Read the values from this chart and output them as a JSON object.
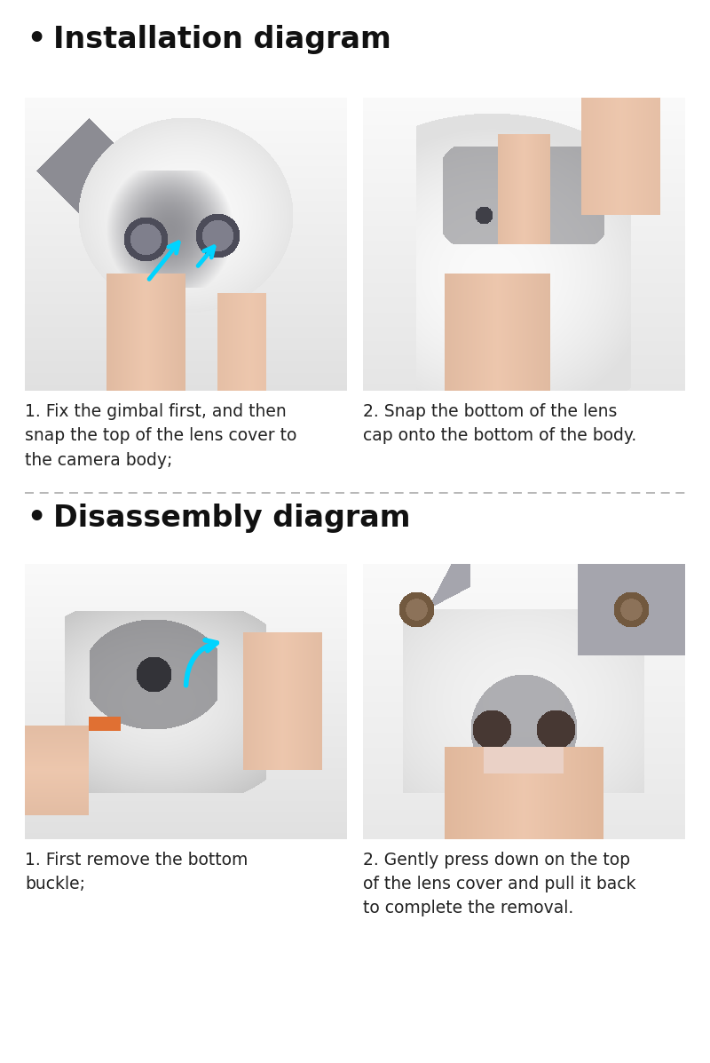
{
  "background_color": "#ffffff",
  "title1": "Installation diagram",
  "title2": "Disassembly diagram",
  "bullet": "•",
  "install_caption1": "1. Fix the gimbal first, and then\nsnap the top of the lens cover to\nthe camera body;",
  "install_caption2": "2. Snap the bottom of the lens\ncap onto the bottom of the body.",
  "disassembly_caption1": "1. First remove the bottom\nbuckle;",
  "disassembly_caption2": "2. Gently press down on the top\nof the lens cover and pull it back\nto complete the removal.",
  "divider_color": "#aaaaaa",
  "title_fontsize": 24,
  "caption_fontsize": 13.5,
  "title_color": "#111111",
  "caption_color": "#222222",
  "panel_bg": "#e8e8e8",
  "panel_bg2": "#e4e4e4",
  "arrow_cyan": "#00d4ff",
  "orange_accent": "#e07030"
}
